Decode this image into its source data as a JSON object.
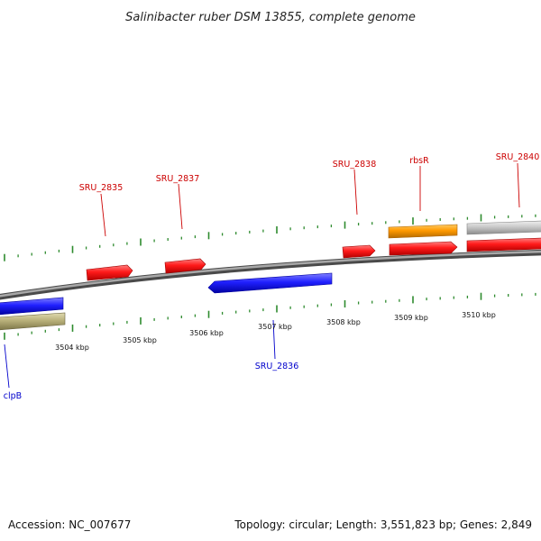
{
  "title": "Salinibacter ruber DSM 13855, complete genome",
  "footer": {
    "accession": "Accession: NC_007677",
    "stats": "Topology: circular; Length: 3,551,823 bp; Genes: 2,849"
  },
  "colors": {
    "forward_gene": "#ff0000",
    "reverse_gene": "#1a1aff",
    "rbsR_gene": "#ff9900",
    "grey_gene": "#bdbdbd",
    "tan_gene": "#b8b07a",
    "label_forward": "#cc0000",
    "label_reverse": "#0000cc",
    "tick": "#2e8b2e",
    "backbone": "#777777"
  },
  "scale": {
    "tick_labels": [
      "3504 kbp",
      "3505 kbp",
      "3506 kbp",
      "3507 kbp",
      "3508 kbp",
      "3509 kbp",
      "3510 kbp"
    ]
  },
  "gene_labels": [
    {
      "name": "SRU_2835",
      "strand": "forward"
    },
    {
      "name": "SRU_2837",
      "strand": "forward"
    },
    {
      "name": "SRU_2838",
      "strand": "forward"
    },
    {
      "name": "rbsR",
      "strand": "forward"
    },
    {
      "name": "SRU_2840",
      "strand": "forward"
    },
    {
      "name": "SRU_2836",
      "strand": "reverse"
    },
    {
      "name": "clpB",
      "strand": "reverse"
    }
  ]
}
